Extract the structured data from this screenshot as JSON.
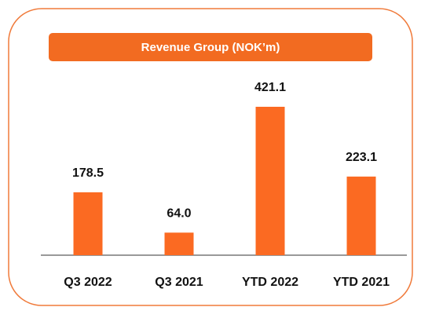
{
  "chart_data": {
    "type": "bar",
    "title": "Revenue Group (NOK’m)",
    "categories": [
      "Q3 2022",
      "Q3 2021",
      "YTD 2022",
      "YTD 2021"
    ],
    "values": [
      178.5,
      64.0,
      421.1,
      223.1
    ],
    "value_labels": [
      "178.5",
      "64.0",
      "421.1",
      "223.1"
    ],
    "color": "#fb6a22"
  }
}
